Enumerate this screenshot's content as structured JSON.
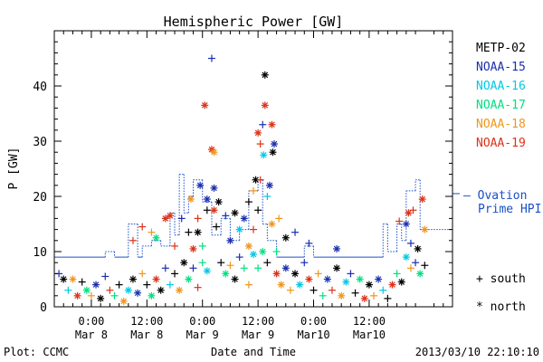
{
  "chart_data": {
    "type": "scatter",
    "title": "Hemispheric Power [GW]",
    "ylabel": "P [GW]",
    "xlabel": "Date and Time",
    "ylim": [
      0,
      50
    ],
    "xlim_hours": [
      -8,
      78
    ],
    "x_ticks": [
      {
        "h": 0,
        "l1": "0:00",
        "l2": "Mar 8"
      },
      {
        "h": 12,
        "l1": "12:00",
        "l2": "Mar 8"
      },
      {
        "h": 24,
        "l1": "0:00",
        "l2": "Mar 9"
      },
      {
        "h": 36,
        "l1": "12:00",
        "l2": "Mar 9"
      },
      {
        "h": 48,
        "l1": "0:00",
        "l2": "Mar10"
      },
      {
        "h": 60,
        "l1": "12:00",
        "l2": "Mar10"
      }
    ],
    "y_ticks": [
      0,
      10,
      20,
      30,
      40
    ],
    "footer_left": "Plot: CCMC",
    "footer_right": "2013/03/10 22:10:10",
    "legend": [
      {
        "name": "METP-02",
        "color": "#000000"
      },
      {
        "name": "NOAA-15",
        "color": "#1a2fb0"
      },
      {
        "name": "NOAA-16",
        "color": "#00c8e6"
      },
      {
        "name": "NOAA-17",
        "color": "#00e080"
      },
      {
        "name": "NOAA-18",
        "color": "#f0961e"
      },
      {
        "name": "NOAA-19",
        "color": "#dc3218"
      }
    ],
    "ovation": {
      "label_line1": "— Ovation",
      "label_line2": "Prime HPI",
      "color": "#1a50c8",
      "steps": [
        [
          -8,
          9
        ],
        [
          3,
          10
        ],
        [
          5,
          9
        ],
        [
          8,
          15
        ],
        [
          10,
          9
        ],
        [
          11,
          11
        ],
        [
          13,
          12
        ],
        [
          15,
          11
        ],
        [
          17,
          17
        ],
        [
          18,
          13
        ],
        [
          19,
          24
        ],
        [
          20,
          17
        ],
        [
          21,
          20
        ],
        [
          22,
          23
        ],
        [
          24,
          19
        ],
        [
          26,
          13
        ],
        [
          28,
          16
        ],
        [
          30,
          12
        ],
        [
          32,
          14
        ],
        [
          34,
          21
        ],
        [
          36,
          23
        ],
        [
          37,
          15
        ],
        [
          38,
          12
        ],
        [
          40,
          9
        ],
        [
          44,
          9
        ],
        [
          46,
          11
        ],
        [
          48,
          9
        ],
        [
          62,
          9
        ],
        [
          63,
          15
        ],
        [
          64,
          10
        ],
        [
          66,
          15
        ],
        [
          67,
          12
        ],
        [
          68,
          21
        ],
        [
          70,
          23
        ],
        [
          71,
          14
        ]
      ]
    },
    "marker_legend": {
      "plus": "+ south",
      "star": "* north"
    },
    "points": [
      {
        "x": 26,
        "y": 45,
        "c": 1,
        "m": "plus"
      },
      {
        "x": 37.5,
        "y": 42,
        "c": 0,
        "m": "star"
      },
      {
        "x": 24.5,
        "y": 36.5,
        "c": 5,
        "m": "star"
      },
      {
        "x": 37.5,
        "y": 36.5,
        "c": 5,
        "m": "star"
      },
      {
        "x": 37,
        "y": 33,
        "c": 1,
        "m": "plus"
      },
      {
        "x": 39,
        "y": 33,
        "c": 5,
        "m": "star"
      },
      {
        "x": 36,
        "y": 31.5,
        "c": 5,
        "m": "star"
      },
      {
        "x": 36.5,
        "y": 29.5,
        "c": 5,
        "m": "plus"
      },
      {
        "x": 39.5,
        "y": 29.5,
        "c": 1,
        "m": "star"
      },
      {
        "x": 26,
        "y": 28.5,
        "c": 5,
        "m": "star"
      },
      {
        "x": 26.5,
        "y": 28,
        "c": 4,
        "m": "star"
      },
      {
        "x": 37.2,
        "y": 27.5,
        "c": 2,
        "m": "star"
      },
      {
        "x": 39.2,
        "y": 28,
        "c": 0,
        "m": "star"
      },
      {
        "x": 35.5,
        "y": 23,
        "c": 0,
        "m": "star"
      },
      {
        "x": 36.5,
        "y": 23,
        "c": 5,
        "m": "plus"
      },
      {
        "x": 35,
        "y": 21,
        "c": 4,
        "m": "plus"
      },
      {
        "x": 23.5,
        "y": 22,
        "c": 1,
        "m": "star"
      },
      {
        "x": 26.5,
        "y": 21.5,
        "c": 1,
        "m": "star"
      },
      {
        "x": 25,
        "y": 19.5,
        "c": 1,
        "m": "star"
      },
      {
        "x": 21.5,
        "y": 19.5,
        "c": 4,
        "m": "star"
      },
      {
        "x": 34,
        "y": 19,
        "c": 0,
        "m": "plus"
      },
      {
        "x": 38.5,
        "y": 22,
        "c": 1,
        "m": "star"
      },
      {
        "x": 38,
        "y": 20,
        "c": 2,
        "m": "plus"
      },
      {
        "x": 27.5,
        "y": 19,
        "c": 0,
        "m": "star"
      },
      {
        "x": 25,
        "y": 17.5,
        "c": 0,
        "m": "plus"
      },
      {
        "x": 26.5,
        "y": 17.5,
        "c": 5,
        "m": "star"
      },
      {
        "x": 31,
        "y": 17,
        "c": 0,
        "m": "star"
      },
      {
        "x": 36,
        "y": 17.5,
        "c": 0,
        "m": "plus"
      },
      {
        "x": 16,
        "y": 16,
        "c": 5,
        "m": "star"
      },
      {
        "x": 17,
        "y": 16.5,
        "c": 5,
        "m": "star"
      },
      {
        "x": 19.5,
        "y": 16,
        "c": 1,
        "m": "plus"
      },
      {
        "x": 23,
        "y": 16,
        "c": 5,
        "m": "plus"
      },
      {
        "x": 29,
        "y": 16.5,
        "c": 1,
        "m": "plus"
      },
      {
        "x": 33,
        "y": 16,
        "c": 1,
        "m": "star"
      },
      {
        "x": 39,
        "y": 15,
        "c": 4,
        "m": "star"
      },
      {
        "x": 40.5,
        "y": 16,
        "c": 4,
        "m": "plus"
      },
      {
        "x": 11,
        "y": 14.5,
        "c": 5,
        "m": "plus"
      },
      {
        "x": 13,
        "y": 13.5,
        "c": 4,
        "m": "plus"
      },
      {
        "x": 21,
        "y": 13.5,
        "c": 0,
        "m": "plus"
      },
      {
        "x": 23,
        "y": 13.5,
        "c": 0,
        "m": "star"
      },
      {
        "x": 27,
        "y": 14.5,
        "c": 0,
        "m": "plus"
      },
      {
        "x": 32,
        "y": 14,
        "c": 2,
        "m": "star"
      },
      {
        "x": 35,
        "y": 14,
        "c": 5,
        "m": "plus"
      },
      {
        "x": 42,
        "y": 12.5,
        "c": 0,
        "m": "star"
      },
      {
        "x": 44,
        "y": 13.5,
        "c": 1,
        "m": "plus"
      },
      {
        "x": 9,
        "y": 12,
        "c": 5,
        "m": "plus"
      },
      {
        "x": 14,
        "y": 12.5,
        "c": 3,
        "m": "star"
      },
      {
        "x": 18,
        "y": 11,
        "c": 5,
        "m": "plus"
      },
      {
        "x": 22,
        "y": 10.5,
        "c": 5,
        "m": "star"
      },
      {
        "x": 24,
        "y": 11,
        "c": 3,
        "m": "plus"
      },
      {
        "x": 30,
        "y": 12,
        "c": 1,
        "m": "star"
      },
      {
        "x": 34,
        "y": 11,
        "c": 4,
        "m": "star"
      },
      {
        "x": 37,
        "y": 10,
        "c": 3,
        "m": "star"
      },
      {
        "x": 40,
        "y": 10,
        "c": 3,
        "m": "plus"
      },
      {
        "x": 47,
        "y": 11.5,
        "c": 1,
        "m": "plus"
      },
      {
        "x": 53,
        "y": 10.5,
        "c": 1,
        "m": "star"
      },
      {
        "x": 69,
        "y": 11.5,
        "c": 1,
        "m": "plus"
      },
      {
        "x": 70.5,
        "y": 10.5,
        "c": 0,
        "m": "star"
      },
      {
        "x": 68.5,
        "y": 17,
        "c": 5,
        "m": "star"
      },
      {
        "x": 69.5,
        "y": 17.5,
        "c": 5,
        "m": "plus"
      },
      {
        "x": 71.5,
        "y": 19.5,
        "c": 5,
        "m": "star"
      },
      {
        "x": 68,
        "y": 15,
        "c": 1,
        "m": "star"
      },
      {
        "x": 66.5,
        "y": 15.5,
        "c": 5,
        "m": "plus"
      },
      {
        "x": 72,
        "y": 14,
        "c": 4,
        "m": "star"
      },
      {
        "x": -7,
        "y": 6,
        "c": 1,
        "m": "plus"
      },
      {
        "x": -6,
        "y": 5,
        "c": 0,
        "m": "star"
      },
      {
        "x": -5,
        "y": 3,
        "c": 2,
        "m": "plus"
      },
      {
        "x": -4,
        "y": 5,
        "c": 4,
        "m": "star"
      },
      {
        "x": -3,
        "y": 2,
        "c": 5,
        "m": "star"
      },
      {
        "x": -2,
        "y": 4.5,
        "c": 0,
        "m": "plus"
      },
      {
        "x": -1,
        "y": 3,
        "c": 3,
        "m": "star"
      },
      {
        "x": 0,
        "y": 2,
        "c": 4,
        "m": "plus"
      },
      {
        "x": 1,
        "y": 4,
        "c": 1,
        "m": "star"
      },
      {
        "x": 2,
        "y": 1.5,
        "c": 0,
        "m": "star"
      },
      {
        "x": 3,
        "y": 5.5,
        "c": 1,
        "m": "plus"
      },
      {
        "x": 4,
        "y": 3,
        "c": 5,
        "m": "plus"
      },
      {
        "x": 5,
        "y": 2,
        "c": 3,
        "m": "plus"
      },
      {
        "x": 6,
        "y": 4,
        "c": 0,
        "m": "plus"
      },
      {
        "x": 7,
        "y": 1,
        "c": 4,
        "m": "star"
      },
      {
        "x": 8,
        "y": 3,
        "c": 2,
        "m": "star"
      },
      {
        "x": 9,
        "y": 5,
        "c": 0,
        "m": "star"
      },
      {
        "x": 10,
        "y": 2.5,
        "c": 1,
        "m": "star"
      },
      {
        "x": 11,
        "y": 6,
        "c": 4,
        "m": "plus"
      },
      {
        "x": 12,
        "y": 4,
        "c": 0,
        "m": "plus"
      },
      {
        "x": 13,
        "y": 2,
        "c": 3,
        "m": "star"
      },
      {
        "x": 14,
        "y": 5,
        "c": 5,
        "m": "star"
      },
      {
        "x": 15,
        "y": 3,
        "c": 0,
        "m": "star"
      },
      {
        "x": 16,
        "y": 7,
        "c": 1,
        "m": "plus"
      },
      {
        "x": 17,
        "y": 4,
        "c": 2,
        "m": "plus"
      },
      {
        "x": 18,
        "y": 6,
        "c": 0,
        "m": "plus"
      },
      {
        "x": 19,
        "y": 3,
        "c": 4,
        "m": "star"
      },
      {
        "x": 20,
        "y": 8,
        "c": 0,
        "m": "star"
      },
      {
        "x": 21,
        "y": 5,
        "c": 3,
        "m": "star"
      },
      {
        "x": 22,
        "y": 7,
        "c": 1,
        "m": "plus"
      },
      {
        "x": 23,
        "y": 3.5,
        "c": 5,
        "m": "plus"
      },
      {
        "x": 24,
        "y": 8,
        "c": 3,
        "m": "plus"
      },
      {
        "x": 25,
        "y": 6.5,
        "c": 2,
        "m": "star"
      },
      {
        "x": 28,
        "y": 8,
        "c": 0,
        "m": "plus"
      },
      {
        "x": 29,
        "y": 6,
        "c": 3,
        "m": "star"
      },
      {
        "x": 30,
        "y": 7.5,
        "c": 4,
        "m": "plus"
      },
      {
        "x": 31,
        "y": 5,
        "c": 0,
        "m": "star"
      },
      {
        "x": 32,
        "y": 9,
        "c": 1,
        "m": "plus"
      },
      {
        "x": 33,
        "y": 7,
        "c": 3,
        "m": "plus"
      },
      {
        "x": 34,
        "y": 4,
        "c": 4,
        "m": "plus"
      },
      {
        "x": 35,
        "y": 9.5,
        "c": 2,
        "m": "star"
      },
      {
        "x": 36,
        "y": 7,
        "c": 3,
        "m": "plus"
      },
      {
        "x": 38,
        "y": 8,
        "c": 0,
        "m": "plus"
      },
      {
        "x": 40,
        "y": 6,
        "c": 5,
        "m": "star"
      },
      {
        "x": 41,
        "y": 4,
        "c": 4,
        "m": "star"
      },
      {
        "x": 42,
        "y": 7,
        "c": 1,
        "m": "star"
      },
      {
        "x": 43,
        "y": 3,
        "c": 4,
        "m": "plus"
      },
      {
        "x": 44,
        "y": 6,
        "c": 0,
        "m": "star"
      },
      {
        "x": 45,
        "y": 4,
        "c": 2,
        "m": "star"
      },
      {
        "x": 46,
        "y": 8,
        "c": 1,
        "m": "plus"
      },
      {
        "x": 47,
        "y": 5,
        "c": 5,
        "m": "star"
      },
      {
        "x": 48,
        "y": 3,
        "c": 0,
        "m": "plus"
      },
      {
        "x": 49,
        "y": 6,
        "c": 4,
        "m": "plus"
      },
      {
        "x": 50,
        "y": 2,
        "c": 3,
        "m": "plus"
      },
      {
        "x": 51,
        "y": 5,
        "c": 1,
        "m": "star"
      },
      {
        "x": 52,
        "y": 3,
        "c": 5,
        "m": "plus"
      },
      {
        "x": 53,
        "y": 7,
        "c": 0,
        "m": "star"
      },
      {
        "x": 54,
        "y": 2,
        "c": 4,
        "m": "star"
      },
      {
        "x": 55,
        "y": 4.5,
        "c": 2,
        "m": "star"
      },
      {
        "x": 56,
        "y": 6,
        "c": 1,
        "m": "plus"
      },
      {
        "x": 57,
        "y": 2.5,
        "c": 0,
        "m": "plus"
      },
      {
        "x": 58,
        "y": 5,
        "c": 3,
        "m": "star"
      },
      {
        "x": 59,
        "y": 1.5,
        "c": 5,
        "m": "star"
      },
      {
        "x": 60,
        "y": 4,
        "c": 0,
        "m": "star"
      },
      {
        "x": 61,
        "y": 2,
        "c": 4,
        "m": "plus"
      },
      {
        "x": 62,
        "y": 5,
        "c": 1,
        "m": "star"
      },
      {
        "x": 63,
        "y": 3,
        "c": 2,
        "m": "plus"
      },
      {
        "x": 64,
        "y": 1.5,
        "c": 0,
        "m": "plus"
      },
      {
        "x": 65,
        "y": 4,
        "c": 5,
        "m": "star"
      },
      {
        "x": 66,
        "y": 6,
        "c": 3,
        "m": "plus"
      },
      {
        "x": 67,
        "y": 4.5,
        "c": 0,
        "m": "star"
      },
      {
        "x": 68,
        "y": 9,
        "c": 2,
        "m": "star"
      },
      {
        "x": 69,
        "y": 7,
        "c": 4,
        "m": "plus"
      },
      {
        "x": 70,
        "y": 8,
        "c": 1,
        "m": "plus"
      },
      {
        "x": 71,
        "y": 6,
        "c": 3,
        "m": "star"
      },
      {
        "x": 72,
        "y": 7.5,
        "c": 0,
        "m": "plus"
      }
    ]
  }
}
